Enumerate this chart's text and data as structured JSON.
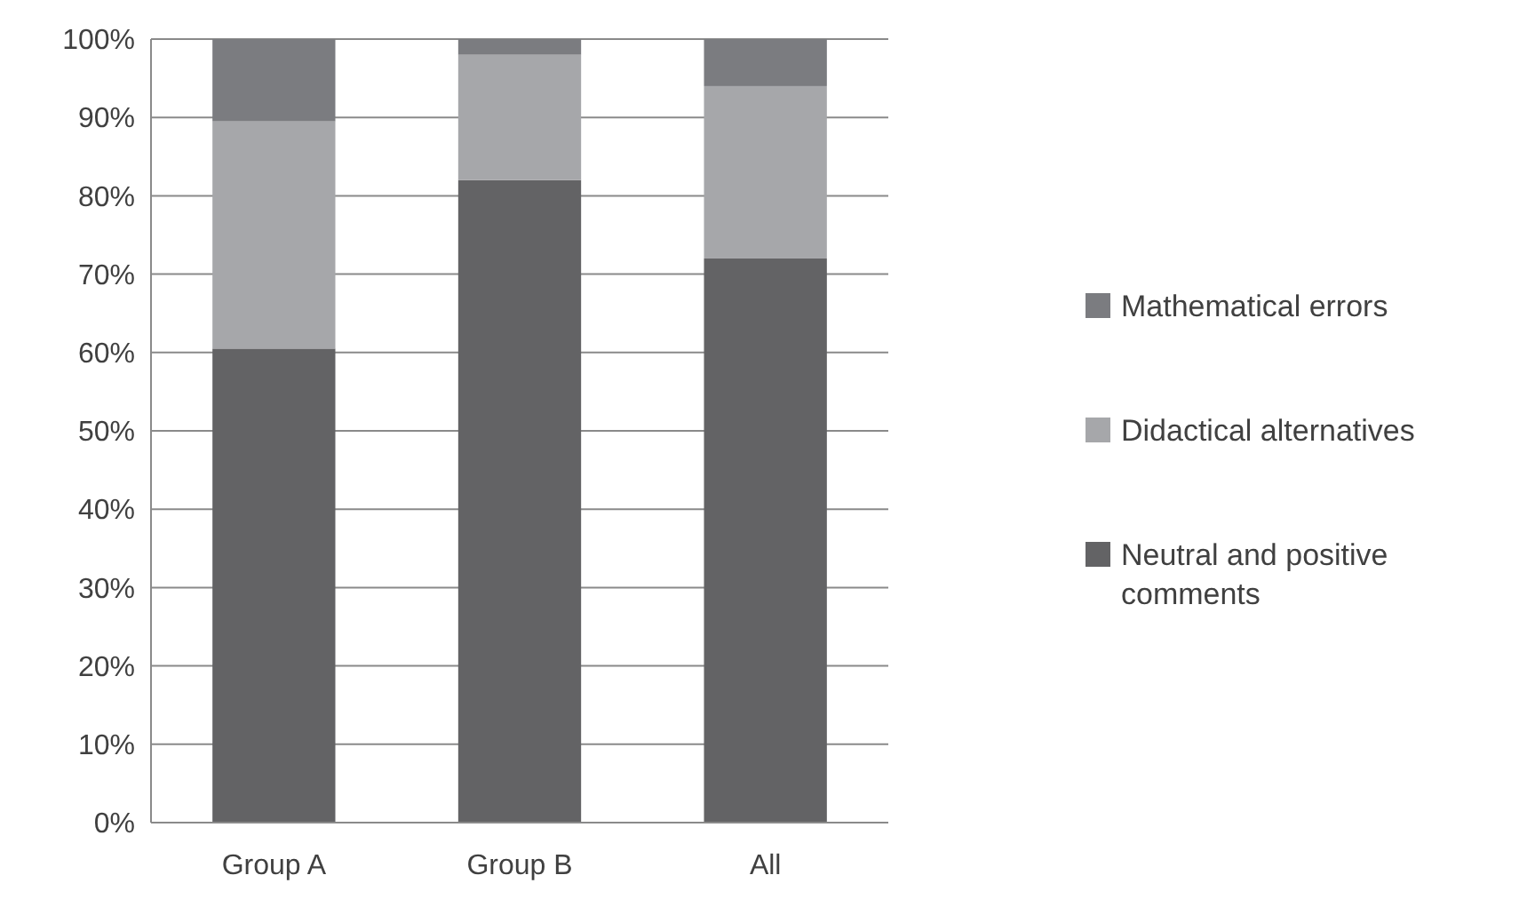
{
  "chart_data": {
    "type": "bar",
    "stacked": true,
    "categories": [
      "Group A",
      "Group B",
      "All"
    ],
    "series": [
      {
        "name": "Neutral and positive comments",
        "color": "#636365",
        "values": [
          60.5,
          82,
          72
        ]
      },
      {
        "name": "Didactical alternatives",
        "color": "#a6a7aa",
        "values": [
          29,
          16,
          22
        ]
      },
      {
        "name": "Mathematical errors",
        "color": "#7b7c80",
        "values": [
          10.5,
          2,
          6
        ]
      }
    ],
    "ylim": [
      0,
      100
    ],
    "yticks": [
      {
        "value": 0,
        "label": "0%"
      },
      {
        "value": 10,
        "label": "10%"
      },
      {
        "value": 20,
        "label": "20%"
      },
      {
        "value": 30,
        "label": "30%"
      },
      {
        "value": 40,
        "label": "40%"
      },
      {
        "value": 50,
        "label": "50%"
      },
      {
        "value": 60,
        "label": "60%"
      },
      {
        "value": 70,
        "label": "70%"
      },
      {
        "value": 80,
        "label": "80%"
      },
      {
        "value": 90,
        "label": "90%"
      },
      {
        "value": 100,
        "label": "100%"
      }
    ],
    "grid": "y",
    "legend": "right"
  }
}
